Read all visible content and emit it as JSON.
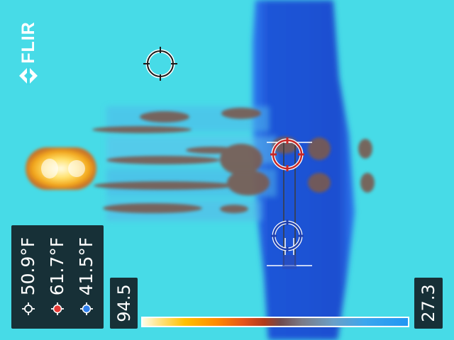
{
  "brand": {
    "logo_text": "FLIR"
  },
  "measurements": [
    {
      "value": "50.9°F",
      "marker": "crosshair",
      "marker_color": "#ffffff"
    },
    {
      "value": "61.7°F",
      "marker": "hot-spot",
      "marker_color": "#e53935"
    },
    {
      "value": "41.5°F",
      "marker": "cold-spot",
      "marker_color": "#2f80ed"
    }
  ],
  "scale": {
    "max": "94.5",
    "min": "27.3"
  },
  "palette": {
    "background": "#3fd9e6",
    "hot": "#ffd24a",
    "cold": "#1f4fd6",
    "spot_hot": "#c62828",
    "spot_cold": "#1e40af"
  }
}
